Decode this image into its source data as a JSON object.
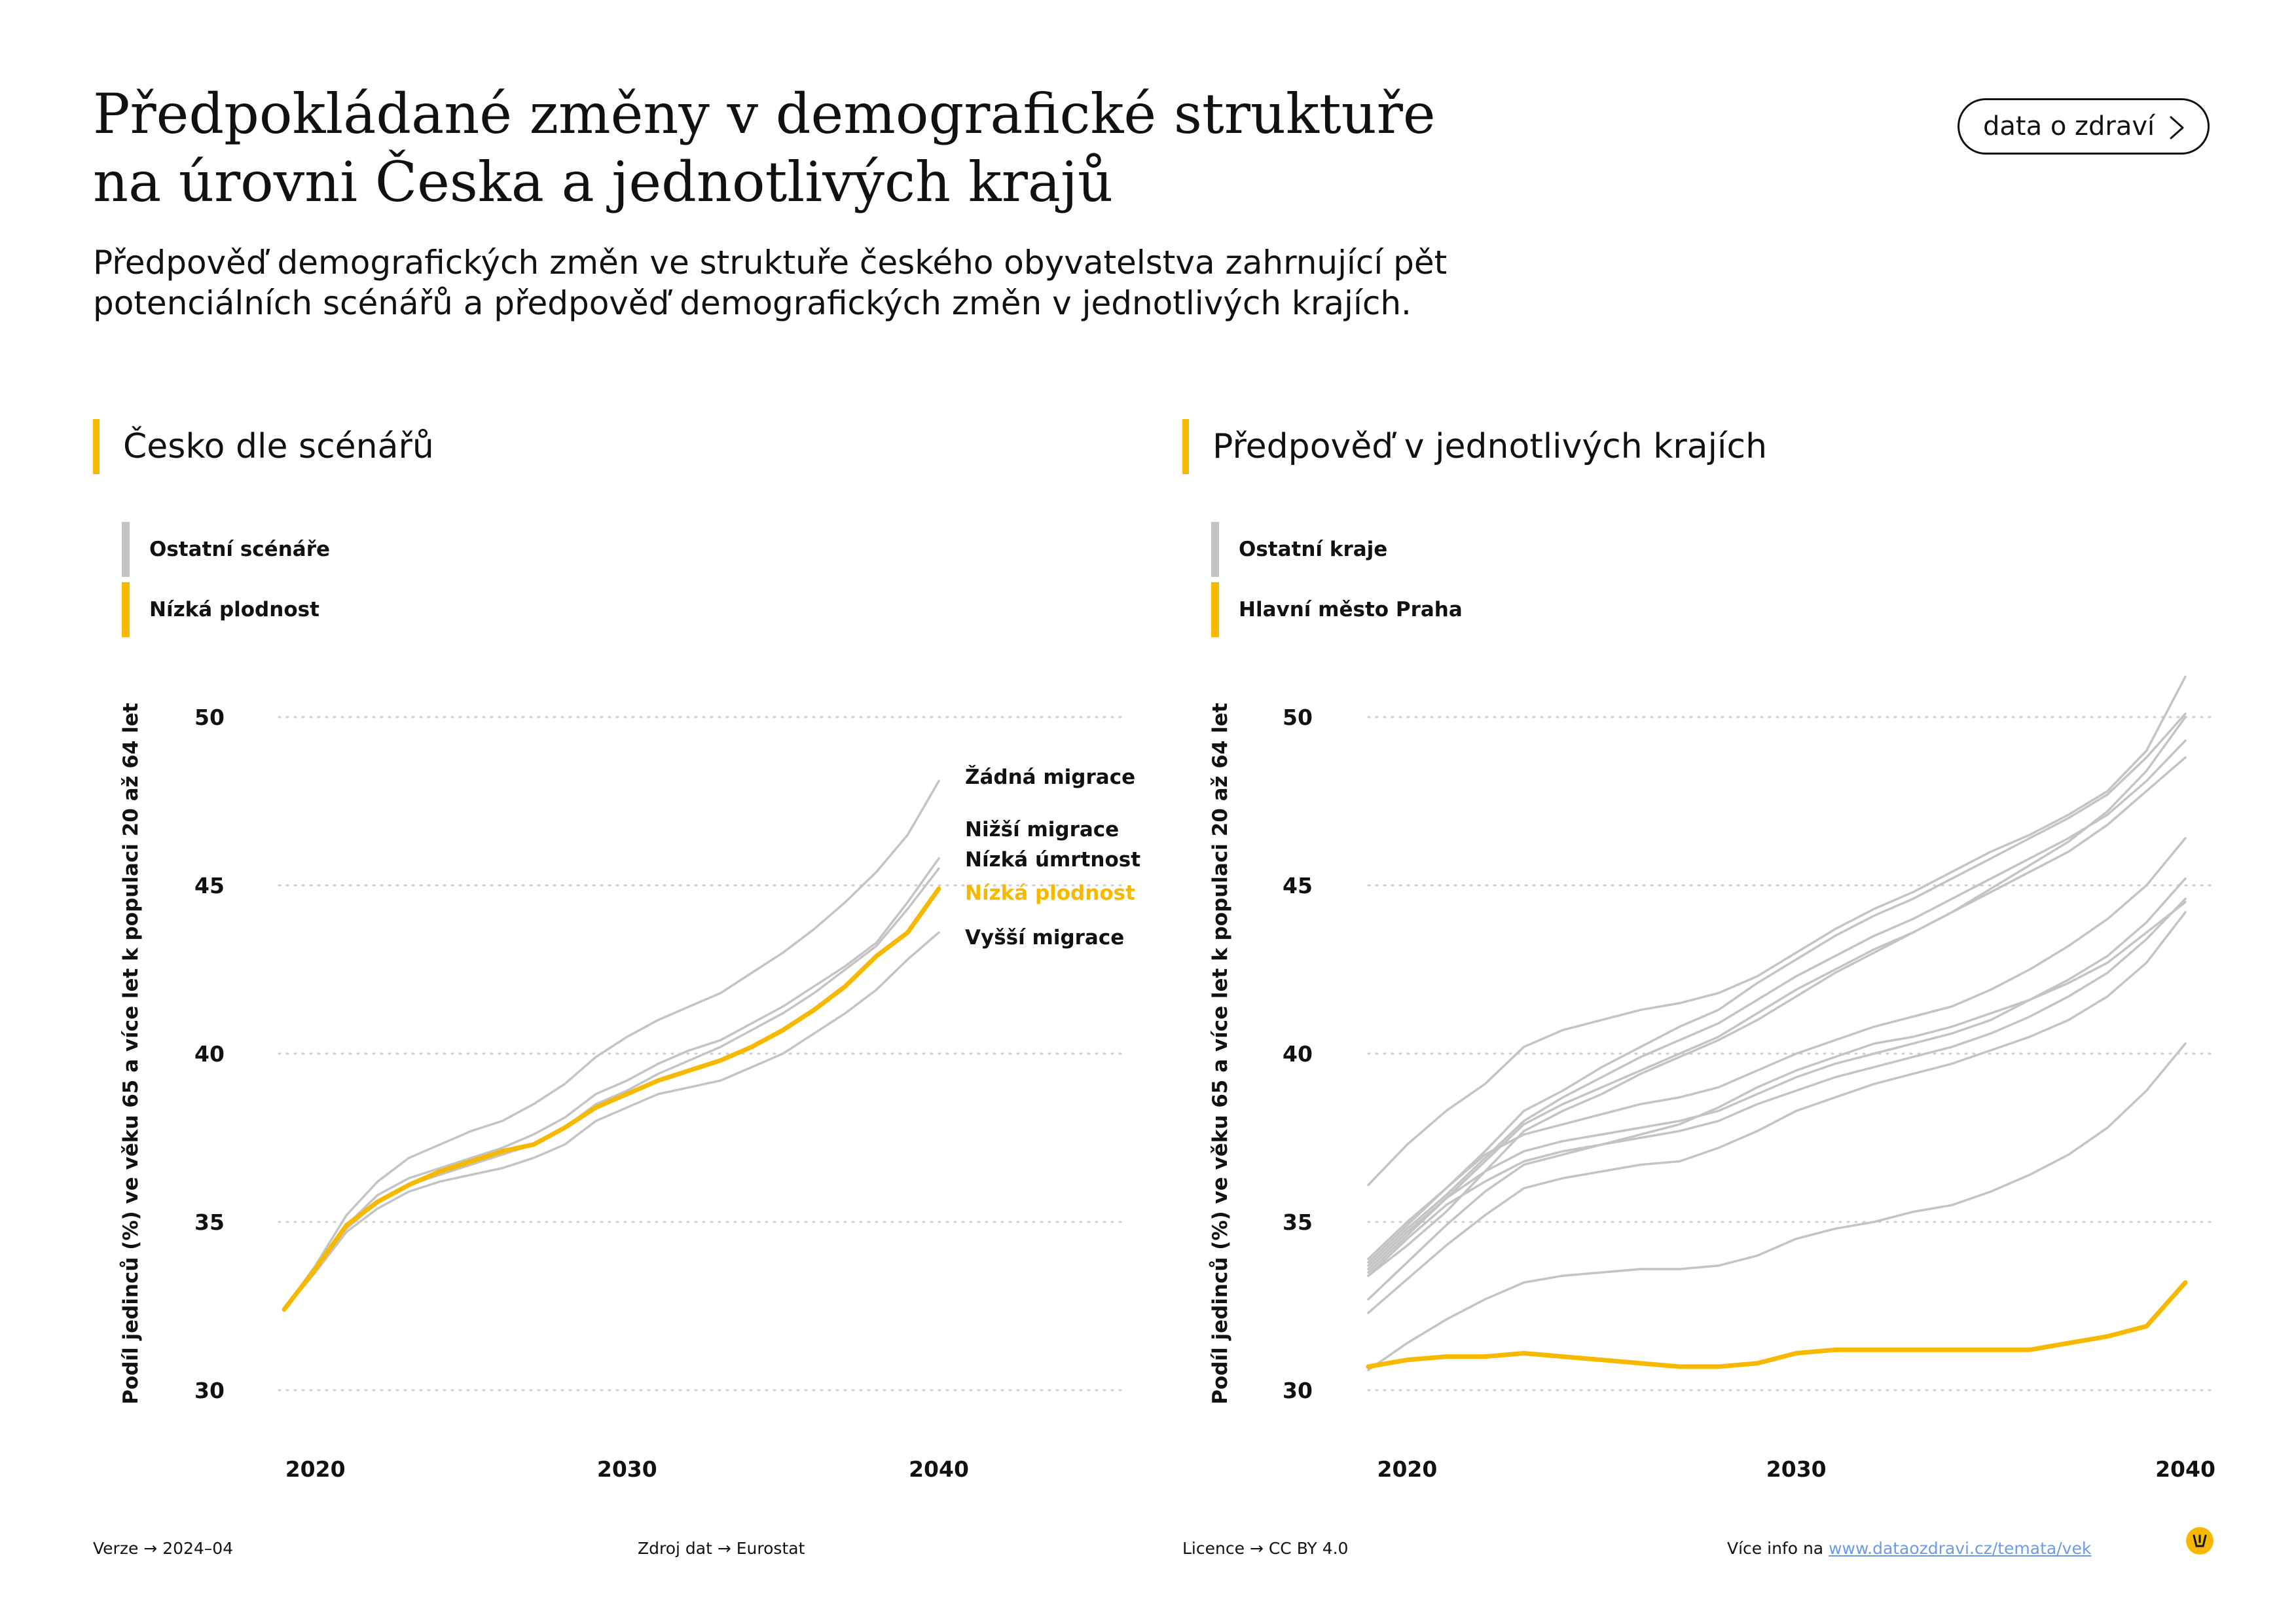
{
  "header": {
    "title_line1": "Předpokládané změny v demografické struktuře",
    "title_line2": "na úrovni Česka a jednotlivých krajů",
    "subtitle_line1": "Předpověď demografických změn ve struktuře českého obyvatelstva zahrnující pět",
    "subtitle_line2": "potenciálních scénářů a předpověď demografických změn v jednotlivých krajích.",
    "cta_label": "data o zdraví",
    "cta_icon": "chevron-right-icon"
  },
  "colors": {
    "accent": "#F7B900",
    "muted_line": "#C4C4C4",
    "grid": "#CFCFCF",
    "text": "#111111",
    "link": "#6A9BE8"
  },
  "left": {
    "heading": "Česko dle scénářů",
    "legend": [
      {
        "label": "Ostatní scénáře",
        "color": "#C4C4C4"
      },
      {
        "label": "Nízká plodnost",
        "color": "#F7B900"
      }
    ]
  },
  "right": {
    "heading": "Předpověď v jednotlivých krajích",
    "legend": [
      {
        "label": "Ostatní kraje",
        "color": "#C4C4C4"
      },
      {
        "label": "Hlavní město Praha",
        "color": "#F7B900"
      }
    ]
  },
  "chart_data": [
    {
      "type": "line",
      "ylabel": "Podíl jedinců (%) ve věku 65 a více let k populaci 20 až 64 let",
      "ylim": [
        30,
        50
      ],
      "yticks": [
        30,
        35,
        40,
        45,
        50
      ],
      "xticks": [
        2020,
        2030,
        2040
      ],
      "grid": true,
      "x": [
        2019,
        2020,
        2021,
        2022,
        2023,
        2024,
        2025,
        2026,
        2027,
        2028,
        2029,
        2030,
        2031,
        2032,
        2033,
        2034,
        2035,
        2036,
        2037,
        2038,
        2039,
        2040
      ],
      "series": [
        {
          "name": "Žádná migrace",
          "highlight": false,
          "label_color": "#111111",
          "values": [
            32.4,
            33.7,
            35.2,
            36.2,
            36.9,
            37.3,
            37.7,
            38.0,
            38.5,
            39.1,
            39.9,
            40.5,
            41.0,
            41.4,
            41.8,
            42.4,
            43.0,
            43.7,
            44.5,
            45.4,
            46.5,
            48.1
          ]
        },
        {
          "name": "Nižší migrace",
          "highlight": false,
          "label_color": "#111111",
          "values": [
            32.4,
            33.6,
            34.9,
            35.8,
            36.3,
            36.6,
            36.9,
            37.2,
            37.6,
            38.1,
            38.8,
            39.2,
            39.7,
            40.1,
            40.4,
            40.9,
            41.4,
            42.0,
            42.6,
            43.3,
            44.5,
            45.8
          ]
        },
        {
          "name": "Nízká úmrtnost",
          "highlight": false,
          "label_color": "#111111",
          "values": [
            32.4,
            33.5,
            34.8,
            35.6,
            36.1,
            36.4,
            36.7,
            37.0,
            37.3,
            37.8,
            38.5,
            38.9,
            39.4,
            39.8,
            40.2,
            40.7,
            41.2,
            41.8,
            42.5,
            43.2,
            44.3,
            45.5
          ]
        },
        {
          "name": "Nízká plodnost",
          "highlight": true,
          "label_color": "#F7B900",
          "values": [
            32.4,
            33.6,
            34.9,
            35.6,
            36.1,
            36.5,
            36.8,
            37.1,
            37.3,
            37.8,
            38.4,
            38.8,
            39.2,
            39.5,
            39.8,
            40.2,
            40.7,
            41.3,
            42.0,
            42.9,
            43.6,
            44.9
          ]
        },
        {
          "name": "Vyšší migrace",
          "highlight": false,
          "label_color": "#111111",
          "values": [
            32.4,
            33.5,
            34.7,
            35.4,
            35.9,
            36.2,
            36.4,
            36.6,
            36.9,
            37.3,
            38.0,
            38.4,
            38.8,
            39.0,
            39.2,
            39.6,
            40.0,
            40.6,
            41.2,
            41.9,
            42.8,
            43.6
          ]
        }
      ]
    },
    {
      "type": "line",
      "ylabel": "Podíl jedinců (%) ve věku 65 a více let k populaci 20 až 64 let",
      "ylim": [
        30,
        50
      ],
      "yticks": [
        30,
        35,
        40,
        45,
        50
      ],
      "xticks": [
        2020,
        2030,
        2040
      ],
      "grid": true,
      "x": [
        2019,
        2020,
        2021,
        2022,
        2023,
        2024,
        2025,
        2026,
        2027,
        2028,
        2029,
        2030,
        2031,
        2032,
        2033,
        2034,
        2035,
        2036,
        2037,
        2038,
        2039,
        2040
      ],
      "series": [
        {
          "name": "Hlavní město Praha",
          "highlight": true,
          "values": [
            30.7,
            30.9,
            31.0,
            31.0,
            31.1,
            31.0,
            30.9,
            30.8,
            30.7,
            30.7,
            30.8,
            31.1,
            31.2,
            31.2,
            31.2,
            31.2,
            31.2,
            31.2,
            31.4,
            31.6,
            31.9,
            33.2
          ]
        },
        {
          "highlight": false,
          "values": [
            36.1,
            37.3,
            38.3,
            39.1,
            40.2,
            40.7,
            41.0,
            41.3,
            41.5,
            41.8,
            42.3,
            43.0,
            43.7,
            44.3,
            44.8,
            45.4,
            46.0,
            46.5,
            47.1,
            47.8,
            49.0,
            51.2
          ]
        },
        {
          "highlight": false,
          "values": [
            33.9,
            35.0,
            36.0,
            37.1,
            38.3,
            38.9,
            39.6,
            40.2,
            40.8,
            41.3,
            42.1,
            42.8,
            43.5,
            44.1,
            44.6,
            45.2,
            45.8,
            46.4,
            47.0,
            47.7,
            48.8,
            50.1
          ]
        },
        {
          "highlight": false,
          "values": [
            33.7,
            34.8,
            35.8,
            36.9,
            38.0,
            38.7,
            39.3,
            39.9,
            40.4,
            40.9,
            41.6,
            42.3,
            42.9,
            43.5,
            44.0,
            44.6,
            45.2,
            45.8,
            46.4,
            47.1,
            48.1,
            49.3
          ]
        },
        {
          "highlight": false,
          "values": [
            33.5,
            34.6,
            35.7,
            36.8,
            37.9,
            38.5,
            39.0,
            39.5,
            40.0,
            40.5,
            41.2,
            41.9,
            42.5,
            43.1,
            43.6,
            44.2,
            44.8,
            45.4,
            46.0,
            46.8,
            47.8,
            48.8
          ]
        },
        {
          "highlight": false,
          "values": [
            33.4,
            34.3,
            35.3,
            36.5,
            37.7,
            38.3,
            38.8,
            39.4,
            39.9,
            40.4,
            41.0,
            41.7,
            42.4,
            43.0,
            43.6,
            44.2,
            44.9,
            45.6,
            46.3,
            47.2,
            48.4,
            50.0
          ]
        },
        {
          "highlight": false,
          "values": [
            33.8,
            34.9,
            36.0,
            37.0,
            37.6,
            37.9,
            38.2,
            38.5,
            38.7,
            39.0,
            39.5,
            40.0,
            40.4,
            40.8,
            41.1,
            41.4,
            41.9,
            42.5,
            43.2,
            44.0,
            45.0,
            46.4
          ]
        },
        {
          "highlight": false,
          "values": [
            33.6,
            34.7,
            35.7,
            36.5,
            37.1,
            37.4,
            37.6,
            37.8,
            38.0,
            38.3,
            38.8,
            39.3,
            39.7,
            40.0,
            40.3,
            40.6,
            41.0,
            41.6,
            42.2,
            42.9,
            43.9,
            45.2
          ]
        },
        {
          "highlight": false,
          "values": [
            33.4,
            34.5,
            35.5,
            36.2,
            36.8,
            37.1,
            37.3,
            37.5,
            37.7,
            38.0,
            38.5,
            38.9,
            39.3,
            39.6,
            39.9,
            40.2,
            40.6,
            41.1,
            41.7,
            42.4,
            43.4,
            44.6
          ]
        },
        {
          "highlight": false,
          "values": [
            32.7,
            33.8,
            34.9,
            35.9,
            36.7,
            37.0,
            37.3,
            37.6,
            37.9,
            38.4,
            39.0,
            39.5,
            39.9,
            40.3,
            40.5,
            40.8,
            41.2,
            41.6,
            42.1,
            42.7,
            43.6,
            44.5
          ]
        },
        {
          "highlight": false,
          "values": [
            32.3,
            33.3,
            34.3,
            35.2,
            36.0,
            36.3,
            36.5,
            36.7,
            36.8,
            37.2,
            37.7,
            38.3,
            38.7,
            39.1,
            39.4,
            39.7,
            40.1,
            40.5,
            41.0,
            41.7,
            42.7,
            44.2
          ]
        },
        {
          "highlight": false,
          "values": [
            30.6,
            31.4,
            32.1,
            32.7,
            33.2,
            33.4,
            33.5,
            33.6,
            33.6,
            33.7,
            34.0,
            34.5,
            34.8,
            35.0,
            35.3,
            35.5,
            35.9,
            36.4,
            37.0,
            37.8,
            38.9,
            40.3
          ]
        }
      ]
    }
  ],
  "footer": {
    "version_label": "Verze",
    "version_value": "2024–04",
    "source_label": "Zdroj dat",
    "source_value": "Eurostat",
    "license_label": "Licence",
    "license_value": "CC BY 4.0",
    "info_label": "Více info na",
    "info_link": "www.dataozdravi.cz/temata/vek",
    "arrow": "→"
  }
}
